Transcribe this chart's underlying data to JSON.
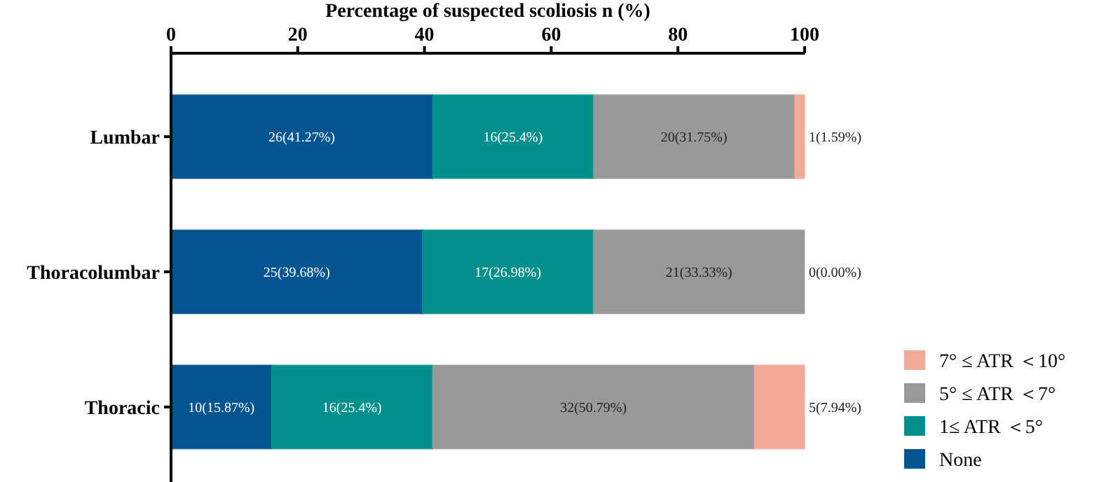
{
  "chart_data": {
    "type": "bar",
    "orientation": "horizontal",
    "stacked": true,
    "xlabel": "Percentage of suspected scoliosis n (%)",
    "categories": [
      "Lumbar",
      "Thoracolumbar",
      "Thoracic"
    ],
    "xlim": [
      0,
      100
    ],
    "xticks": [
      0,
      20,
      40,
      60,
      80,
      100
    ],
    "legend": "right",
    "grid": false,
    "series": [
      {
        "name": "None",
        "color": "#00548f",
        "values": [
          41.27,
          39.68,
          15.87
        ],
        "value_labels": [
          "26(41.27%)",
          "25(39.68%)",
          "10(15.87%)"
        ]
      },
      {
        "name": "1≤ ATR ＜5°",
        "color": "#008f8a",
        "values": [
          25.4,
          26.98,
          25.4
        ],
        "value_labels": [
          "16(25.4%)",
          "17(26.98%)",
          "16(25.4%)"
        ]
      },
      {
        "name": "5° ≤ ATR ＜7°",
        "color": "#999999",
        "values": [
          31.75,
          33.33,
          50.79
        ],
        "value_labels": [
          "20(31.75%)",
          "21(33.33%)",
          "32(50.79%)"
        ]
      },
      {
        "name": "7° ≤ ATR ＜10°",
        "color": "#f4a999",
        "values": [
          1.59,
          0,
          7.94
        ],
        "value_labels": [
          "1(1.59%)",
          "0(0.00%)",
          "5(7.94%)"
        ]
      }
    ]
  }
}
